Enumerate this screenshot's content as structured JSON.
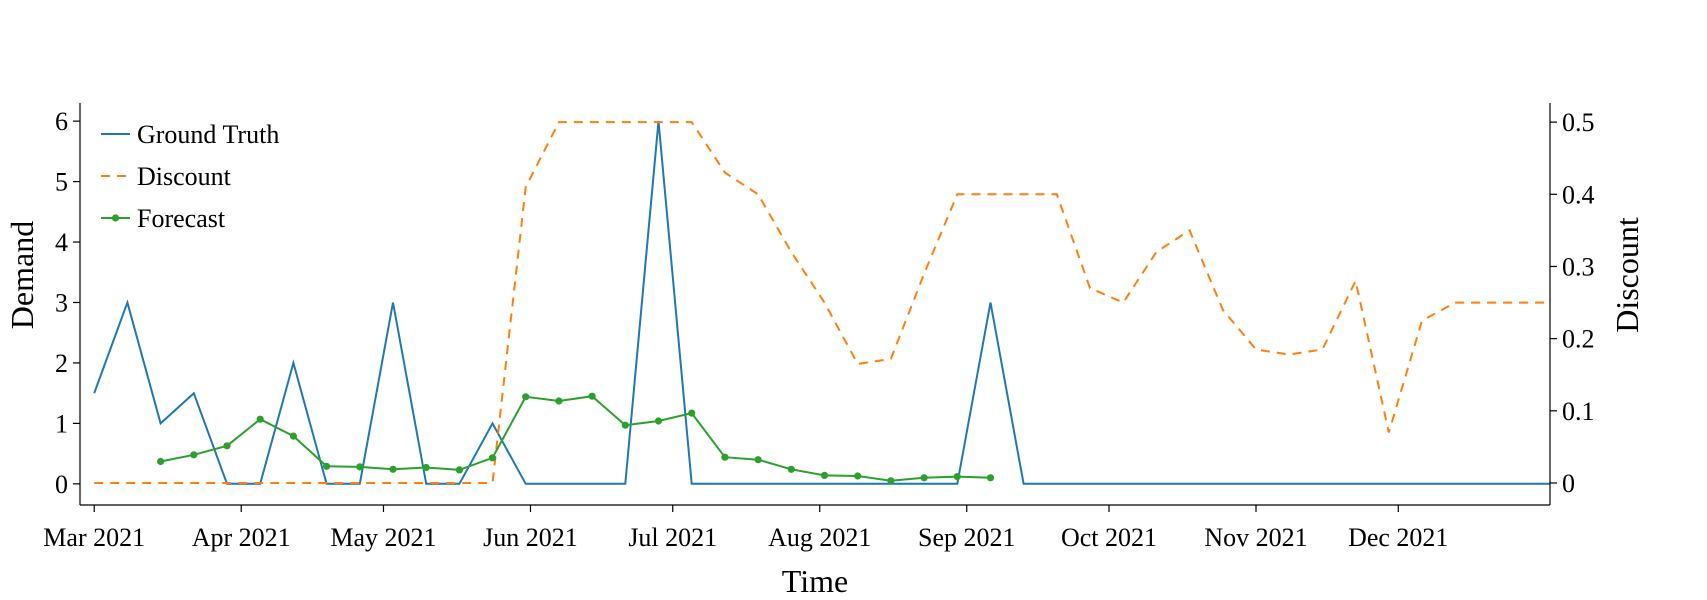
{
  "chart_data": {
    "type": "line",
    "title": "",
    "xlabel": "Time",
    "ylabel": "Demand",
    "y2label": "Discount",
    "x_ticks": [
      "Mar 2021",
      "Apr 2021",
      "May 2021",
      "Jun 2021",
      "Jul 2021",
      "Aug 2021",
      "Sep 2021",
      "Oct 2021",
      "Nov 2021",
      "Dec 2021"
    ],
    "x_tick_dates": [
      "2021-03-01",
      "2021-04-01",
      "2021-05-01",
      "2021-06-01",
      "2021-07-01",
      "2021-08-01",
      "2021-09-01",
      "2021-10-01",
      "2021-11-01",
      "2021-12-01"
    ],
    "xlim": [
      "2021-02-26",
      "2022-01-02"
    ],
    "ylim": [
      -0.35,
      6.3
    ],
    "y_ticks": [
      0,
      1,
      2,
      3,
      4,
      5,
      6
    ],
    "y2lim": [
      -0.0305,
      0.5265
    ],
    "y2_ticks": [
      "0",
      "0.1",
      "0.2",
      "0.3",
      "0.4",
      "0.5"
    ],
    "grid": false,
    "legend_position": "top-left",
    "colors": {
      "ground_truth": "#1f77b4",
      "discount": "#ff7f0e",
      "forecast": "#2ca02c"
    },
    "x": [
      "2021-03-01",
      "2021-03-08",
      "2021-03-15",
      "2021-03-22",
      "2021-03-29",
      "2021-04-05",
      "2021-04-12",
      "2021-04-19",
      "2021-04-26",
      "2021-05-03",
      "2021-05-10",
      "2021-05-17",
      "2021-05-24",
      "2021-05-31",
      "2021-06-07",
      "2021-06-14",
      "2021-06-21",
      "2021-06-28",
      "2021-07-05",
      "2021-07-12",
      "2021-07-19",
      "2021-07-26",
      "2021-08-02",
      "2021-08-09",
      "2021-08-16",
      "2021-08-23",
      "2021-08-30",
      "2021-09-06",
      "2021-09-13",
      "2021-09-20",
      "2021-09-27",
      "2021-10-04",
      "2021-10-11",
      "2021-10-18",
      "2021-10-25",
      "2021-11-01",
      "2021-11-08",
      "2021-11-15",
      "2021-11-22",
      "2021-11-29",
      "2021-12-06",
      "2021-12-13",
      "2021-12-20",
      "2021-12-27",
      "2022-01-02"
    ],
    "series": [
      {
        "name": "Ground Truth",
        "axis": "left",
        "style": "solid",
        "values": [
          1.5,
          3.0,
          1.0,
          1.5,
          0,
          0,
          2.0,
          0,
          0,
          3.0,
          0,
          0,
          1.0,
          0,
          0,
          0,
          0,
          6.0,
          0,
          0,
          0,
          0,
          0,
          0,
          0,
          0,
          0,
          3.0,
          0,
          0,
          0,
          0,
          0,
          0,
          0,
          0,
          0,
          0,
          0,
          0,
          0,
          0,
          0,
          0,
          0
        ]
      },
      {
        "name": "Discount",
        "axis": "right",
        "style": "dashed",
        "values": [
          0,
          0,
          0,
          0,
          0,
          0,
          0,
          0,
          0,
          0,
          0,
          0,
          0,
          0.41,
          0.5,
          0.5,
          0.5,
          0.5,
          0.5,
          0.43,
          0.4,
          0.32,
          0.25,
          0.165,
          0.172,
          0.29,
          0.4,
          0.4,
          0.4,
          0.4,
          0.27,
          0.25,
          0.32,
          0.35,
          0.24,
          0.185,
          0.178,
          0.185,
          0.28,
          0.07,
          0.225,
          0.25,
          0.25,
          0.25,
          0.25
        ]
      },
      {
        "name": "Forecast",
        "axis": "left",
        "style": "solid-markers",
        "values": [
          null,
          null,
          0.37,
          0.48,
          0.63,
          1.07,
          0.79,
          0.29,
          0.28,
          0.24,
          0.27,
          0.23,
          0.43,
          1.44,
          1.37,
          1.45,
          0.97,
          1.04,
          1.17,
          0.44,
          0.4,
          0.24,
          0.14,
          0.13,
          0.05,
          0.1,
          0.12,
          0.1,
          null,
          null,
          null,
          null,
          null,
          null,
          null,
          null,
          null,
          null,
          null,
          null,
          null,
          null,
          null,
          null,
          null
        ]
      }
    ]
  }
}
